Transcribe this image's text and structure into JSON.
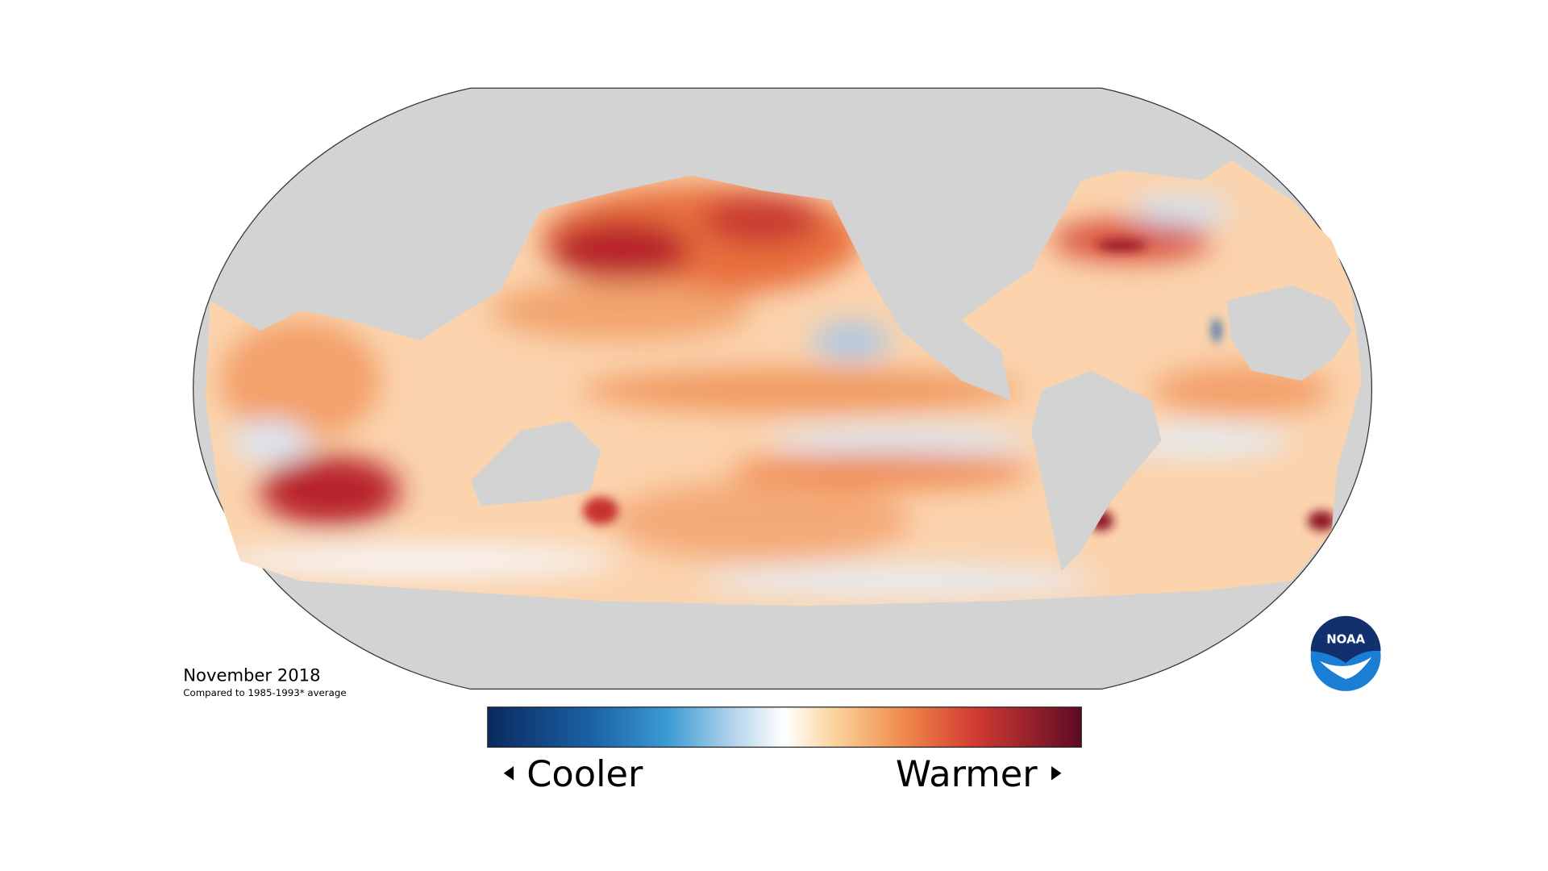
{
  "map": {
    "date": "November 2018",
    "note": "Compared to 1985-1993* average"
  },
  "legend": {
    "low_label": "Cooler",
    "high_label": "Warmer"
  },
  "logo": {
    "text": "NOAA"
  }
}
